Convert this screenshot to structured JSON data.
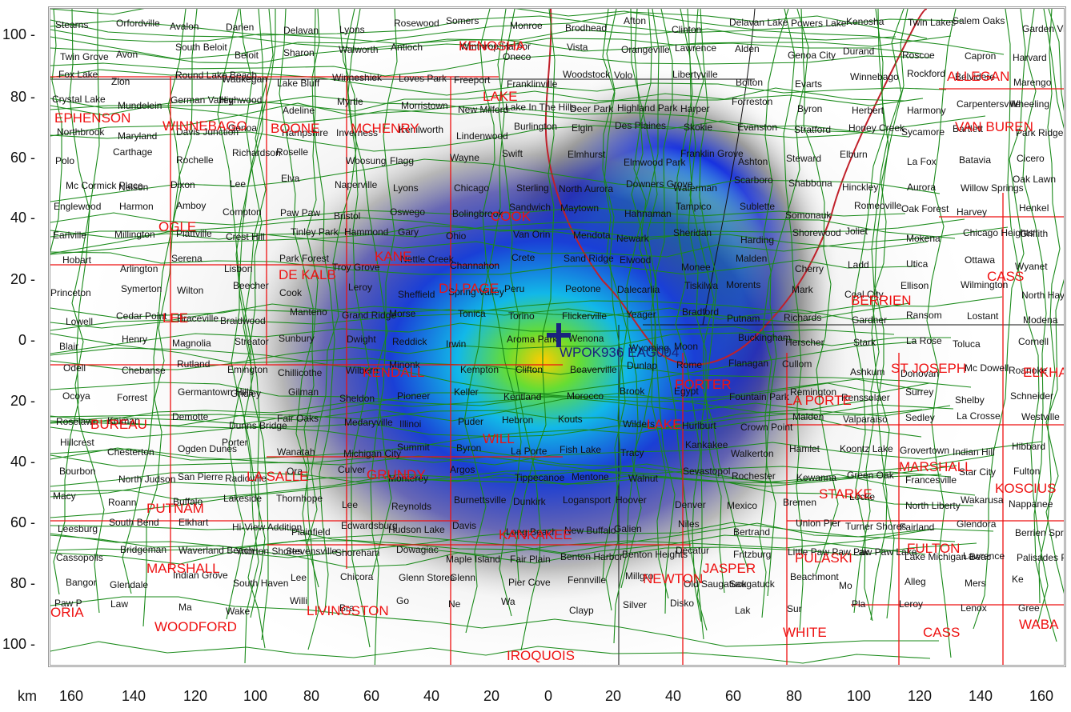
{
  "x_axis": {
    "unit": "km",
    "ticks": [
      "160",
      "140",
      "120",
      "100",
      "80",
      "60",
      "40",
      "20",
      "0",
      "20",
      "40",
      "60",
      "80",
      "100",
      "120",
      "140",
      "160"
    ]
  },
  "y_axis": {
    "ticks": [
      "100",
      "80",
      "60",
      "40",
      "20",
      "0",
      "20",
      "40",
      "60",
      "80",
      "100"
    ]
  },
  "station": {
    "label": "WPOK936 EAG004"
  },
  "colors": {
    "county_border": "#ee1111",
    "roads": "#1a8a1a",
    "lake_shore": "#c0202a",
    "station_marker": "#1a237e"
  },
  "counties": [
    "KENOSHA",
    "LAKE",
    "WINNEBAGO",
    "BOONE",
    "MCHENRY",
    "EPHENSON",
    "OGLE",
    "COOK",
    "KANE",
    "DE KALB",
    "DU PAGE",
    "LEE",
    "KENDALL",
    "BUREAU",
    "WILL",
    "GRUNDY",
    "LA SALLE",
    "PUTNAM",
    "KANKAKEE",
    "MARSHALL",
    "LIVINGSTON",
    "WOODFORD",
    "IROQUOIS",
    "NEWTON",
    "JASPER",
    "LAKE",
    "PORTER",
    "LA PORTE",
    "STARKE",
    "PULASKI",
    "WHITE",
    "CASS",
    "FULTON",
    "MARSHALL",
    "KOSCIUS",
    "ST JOSEPH",
    "ELKHAR",
    "BERRIEN",
    "CASS",
    "ALLEGAN",
    "VAN BUREN",
    "ORIA",
    "WABA"
  ],
  "places": [
    "Stearns",
    "Orfordville",
    "Avalon",
    "Darien",
    "Delavan",
    "Lyons",
    "Rosewood",
    "Somers",
    "Monroe",
    "Brodhead",
    "Afton",
    "Clinton",
    "Delavan Lake",
    "Powers Lake",
    "Kenosha",
    "Twin Lakes",
    "Salem Oaks",
    "Garden Village",
    "Twin Grove",
    "Avon",
    "South Beloit",
    "Beloit",
    "Sharon",
    "Walworth",
    "Antioch",
    "Winthrop Harbor",
    "Oneco",
    "Vista",
    "Orangeville",
    "Lawrence",
    "Alden",
    "Genoa City",
    "Durand",
    "Roscoe",
    "Capron",
    "Harvard",
    "Fox Lake",
    "Zion",
    "Round Lake Beach",
    "Waukegan",
    "Lake Bluff",
    "Winneshiek",
    "Loves Park",
    "Freeport",
    "Franklinville",
    "Woodstock",
    "Volo",
    "Libertyville",
    "Bolton",
    "Evarts",
    "Winnebago",
    "Rockford",
    "Belvidere",
    "Marengo",
    "Crystal Lake",
    "Mundelein",
    "German Valley",
    "Highwood",
    "Adeline",
    "Myrtle",
    "Morristown",
    "New Milford",
    "Lake In The Hills",
    "Deer Park",
    "Highland Park",
    "Harper",
    "Forreston",
    "Byron",
    "Herbert",
    "Harmony",
    "Carpentersville",
    "Wheeling",
    "Northbrook",
    "Maryland",
    "Davis Junction",
    "Genoa",
    "Hampshire",
    "Inverness",
    "Kenilworth",
    "Lindenwood",
    "Burlington",
    "Elgin",
    "Des Plaines",
    "Skokie",
    "Evanston",
    "Stratford",
    "Honey Creek",
    "Sycamore",
    "Bartlett",
    "Park Ridge",
    "Polo",
    "Carthage",
    "Rochelle",
    "Richardson",
    "Roselle",
    "Woosung",
    "Flagg",
    "Wayne",
    "Swift",
    "Elmhurst",
    "Elmwood Park",
    "Franklin Grove",
    "Ashton",
    "Steward",
    "Elburn",
    "La Fox",
    "Batavia",
    "Cicero",
    "Mc Cormick Place",
    "Nelson",
    "Dixon",
    "Lee",
    "Elva",
    "Naperville",
    "Lyons",
    "Chicago",
    "Sterling",
    "North Aurora",
    "Downers Grove",
    "Waterman",
    "Scarboro",
    "Shabbona",
    "Hinckley",
    "Aurora",
    "Willow Springs",
    "Oak Lawn",
    "Englewood",
    "Harmon",
    "Amboy",
    "Compton",
    "Paw Paw",
    "Bristol",
    "Oswego",
    "Bolingbrook",
    "Sandwich",
    "Maytown",
    "Hahnaman",
    "Tampico",
    "Sublette",
    "Somonauk",
    "Romeoville",
    "Oak Forest",
    "Harvey",
    "Henkel",
    "Earlville",
    "Millington",
    "Plattville",
    "Crest Hill",
    "Tinley Park",
    "Hammond",
    "Gary",
    "Ohio",
    "Van Orin",
    "Mendota",
    "Newark",
    "Sheridan",
    "Harding",
    "Shorewood",
    "Joliet",
    "Mokena",
    "Chicago Heights",
    "Griffith",
    "Hobart",
    "Arlington",
    "Serena",
    "Lisbon",
    "Park Forest",
    "Troy Grove",
    "Nettle Creek",
    "Channahon",
    "Crete",
    "Sand Ridge",
    "Elwood",
    "Monee",
    "Malden",
    "Cherry",
    "Ladd",
    "Utica",
    "Ottawa",
    "Wyanet",
    "Princeton",
    "Symerton",
    "Wilton",
    "Beecher",
    "Cook",
    "Leroy",
    "Sheffield",
    "Spring Valley",
    "Peru",
    "Peotone",
    "Dalecarlia",
    "Tiskilwa",
    "Morents",
    "Mark",
    "Coal City",
    "Ellison",
    "Wilmington",
    "North Hayden",
    "Lowell",
    "Cedar Point",
    "Braceville",
    "Braidwood",
    "Manteno",
    "Grand Ridge",
    "Morse",
    "Tonica",
    "Torino",
    "Flickerville",
    "Yeager",
    "Bradford",
    "Putnam",
    "Richards",
    "Gardner",
    "Ransom",
    "Lostant",
    "Modena",
    "Blair",
    "Henry",
    "Magnolia",
    "Streator",
    "Sunbury",
    "Dwight",
    "Reddick",
    "Irwin",
    "Aroma Park",
    "Wenona",
    "Wyoming",
    "Moon",
    "Buckingham",
    "Herscher",
    "Stark",
    "La Rose",
    "Toluca",
    "Cornell",
    "Odell",
    "Chebanse",
    "Rutland",
    "Emington",
    "Chillicothe",
    "Wilbern",
    "Minonk",
    "Kempton",
    "Clifton",
    "Beaverville",
    "Dunlap",
    "Rome",
    "Flanagan",
    "Cullom",
    "Ashkum",
    "Donovan",
    "Mc Dowell",
    "Roanoke",
    "Ocoya",
    "Forrest",
    "Germantown Hills",
    "Gridley",
    "Gilman",
    "Sheldon",
    "Pioneer",
    "Keller",
    "Kentland",
    "Morocco",
    "Brook",
    "Egypt",
    "Fountain Park",
    "Remington",
    "Rensselaer",
    "Surrey",
    "Shelby",
    "Schneider",
    "Roselawn",
    "Kniman",
    "Demotte",
    "Dunns Bridge",
    "Fair Oaks",
    "Medaryville",
    "Illinoi",
    "Puder",
    "Hebron",
    "Kouts",
    "Wilders",
    "Hurlburt",
    "Crown Point",
    "Malden",
    "Valparaiso",
    "Sedley",
    "La Crosse",
    "Westville",
    "Hillcrest",
    "Chesterton",
    "Ogden Dunes",
    "Porter",
    "Wanatah",
    "Michigan City",
    "Summit",
    "Byron",
    "La Porte",
    "Fish Lake",
    "Tracy",
    "Kankakee",
    "Walkerton",
    "Hamlet",
    "Koontz Lake",
    "Grovertown",
    "Indian Hill",
    "Hibbard",
    "Bourbon",
    "North Judson",
    "San Pierre",
    "Radioville",
    "Ora",
    "Culver",
    "Monterey",
    "Argos",
    "Tippecanoe",
    "Mentone",
    "Walnut",
    "Sevastopol",
    "Rochester",
    "Kewanna",
    "Green Oak",
    "Francesville",
    "Star City",
    "Fulton",
    "Macy",
    "Roann",
    "Buffalo",
    "Lakeside",
    "Thornhope",
    "Lee",
    "Reynolds",
    "Burnettsville",
    "Dunkirk",
    "Logansport",
    "Hoover",
    "Denver",
    "Mexico",
    "Bremen",
    "Locke",
    "North Liberty",
    "Wakarusa",
    "Nappanee",
    "Leesburg",
    "South Bend",
    "Elkhart",
    "Hi-View Addition",
    "Plainfield",
    "Edwardsburg",
    "Hudson Lake",
    "Davis",
    "Long Beach",
    "New Buffalo",
    "Galien",
    "Niles",
    "Bertrand",
    "Union Pier",
    "Turner Shores",
    "Fairland",
    "Glendora",
    "Berrien Springs",
    "Cassopolis",
    "Bridgeman",
    "Waverland Beach",
    "Ynorton Shores",
    "Stevensville",
    "Shoreham",
    "Dowagiac",
    "Maple Island",
    "Fair Plain",
    "Benton Harbor",
    "Benton Heights",
    "Decatur",
    "Fritzburg",
    "Little Paw Paw Lak",
    "Paw Paw Lake",
    "Lake Michigan Beac",
    "Lawrence",
    "Palisades Park",
    "Bangor",
    "Glendale",
    "Indian Grove",
    "South Haven",
    "Lee",
    "Chicora",
    "Glenn Stores",
    "Glenn",
    "Pier Cove",
    "Fennville",
    "Millgro",
    "Old Saugatuck",
    "Saugatuck",
    "Beachmont",
    "Mo",
    "Alleg",
    "Mers",
    "Ke",
    "Paw P",
    "Law",
    "Ma",
    "Wake",
    "Willi",
    "Bra",
    "Go",
    "Ne",
    "Wa",
    "Clayp",
    "Silver",
    "Disko",
    "Lak",
    "Sur",
    "Pla",
    "Leroy",
    "Lenox",
    "Gree"
  ]
}
